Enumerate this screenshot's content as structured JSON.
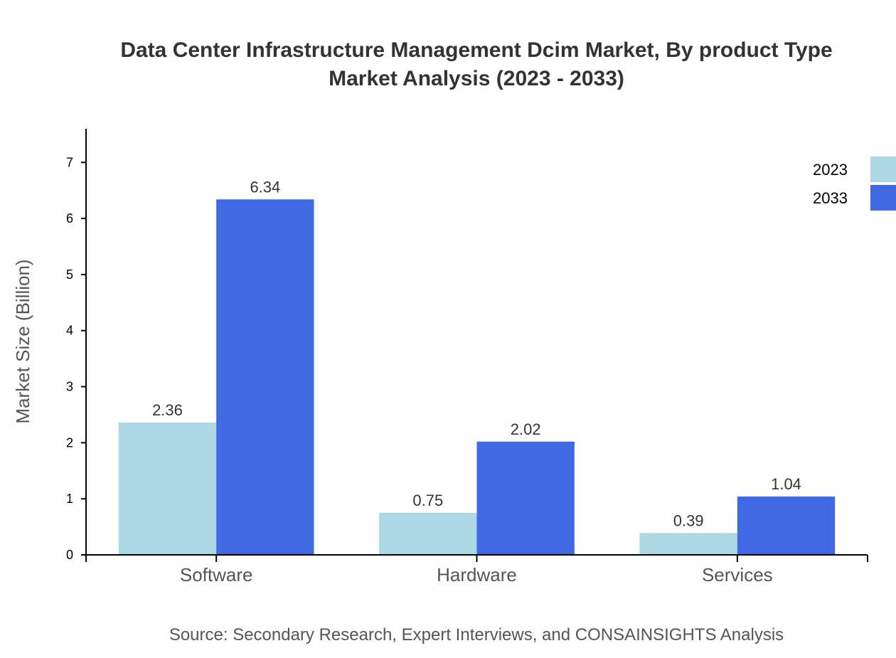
{
  "chart_data": {
    "type": "bar",
    "title_line1": "Data Center Infrastructure Management Dcim Market, By product Type",
    "title_line2": "Market Analysis (2023 - 2033)",
    "xlabel": "",
    "ylabel": "Market Size (Billion)",
    "ylim": [
      0,
      7.6
    ],
    "yticks": [
      "0",
      "1",
      "2",
      "3",
      "4",
      "5",
      "6",
      "7"
    ],
    "categories": [
      "Software",
      "Hardware",
      "Services"
    ],
    "series": [
      {
        "name": "2023",
        "color": "#add8e6",
        "values": [
          2.36,
          0.75,
          0.39
        ],
        "labels": [
          "2.36",
          "0.75",
          "0.39"
        ]
      },
      {
        "name": "2033",
        "color": "#4169e1",
        "values": [
          6.34,
          2.02,
          1.04
        ],
        "labels": [
          "6.34",
          "2.02",
          "1.04"
        ]
      }
    ],
    "legend_position": "top-right",
    "grid": false,
    "source": "Source: Secondary Research, Expert Interviews, and CONSAINSIGHTS Analysis"
  }
}
